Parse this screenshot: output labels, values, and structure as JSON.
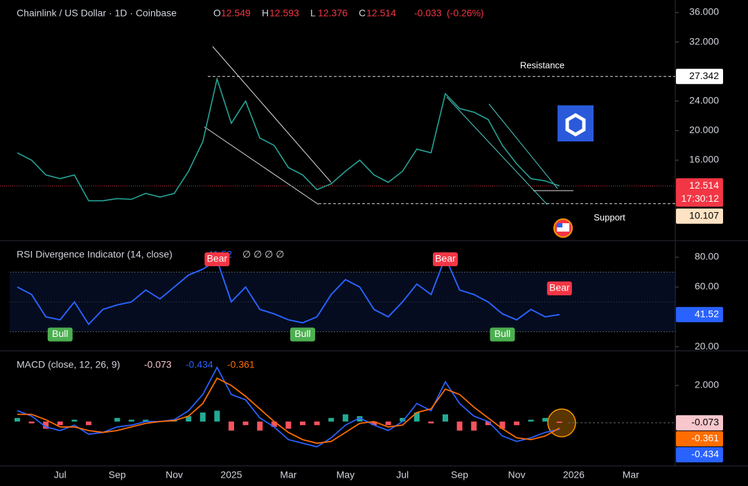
{
  "chart_data": {
    "type": "panes",
    "categories": [
      null,
      null,
      null,
      "Jul",
      null,
      null,
      null,
      "Sep",
      null,
      null,
      null,
      "Nov",
      null,
      null,
      null,
      "2025",
      null,
      null,
      null,
      "Mar",
      null,
      null,
      null,
      "May",
      null,
      null,
      null,
      "Jul",
      null,
      null,
      null,
      "Sep",
      null,
      null,
      null,
      "Nov",
      null,
      null,
      null,
      "2026",
      null,
      null,
      null,
      "Mar",
      null,
      null
    ],
    "panes": [
      {
        "type": "line",
        "title": "Chainlink / US Dollar · 1D · Coinbase",
        "ohlc": [
          {
            "label": "O",
            "value": 12.549
          },
          {
            "label": "H",
            "value": 12.593
          },
          {
            "label": "L",
            "value": 12.376
          },
          {
            "label": "C",
            "value": 12.514
          }
        ],
        "change": -0.033,
        "change_percent": {
          "value": -0.26,
          "label": "(-0.26%)"
        },
        "countdown": "17:30:12",
        "color": "#26a69a",
        "last_color": "#f23645",
        "values": [
          17,
          16,
          14,
          13.5,
          14,
          10.5,
          10.5,
          10.8,
          10.7,
          11.5,
          11,
          11.5,
          14.5,
          18.5,
          27,
          21,
          24,
          19,
          18,
          15,
          14,
          12,
          12.8,
          14.5,
          16,
          14,
          13,
          14.5,
          17.5,
          17,
          25,
          23,
          22.5,
          21.5,
          18,
          15.5,
          13.5,
          13.2,
          12.514,
          null,
          null,
          null,
          null,
          null,
          null,
          null
        ],
        "ylim": [
          5.3,
          37.69
        ],
        "yticks": [
          {
            "value": 16,
            "label": "16.000"
          },
          {
            "value": 20,
            "label": "20.000"
          },
          {
            "value": 24,
            "label": "24.000"
          },
          {
            "value": 32,
            "label": "32.000"
          },
          {
            "value": 36,
            "label": "36.000"
          }
        ],
        "annotations": [
          {
            "text": "Resistance",
            "value": 27.342
          },
          {
            "text": "Support",
            "value": 10.107
          }
        ]
      },
      {
        "type": "line",
        "title": "RSI Divergence Indicator (14, close)",
        "placeholders": "∅ ∅ ∅ ∅",
        "color": "#2962ff",
        "values": [
          60,
          55,
          40,
          38,
          50,
          35,
          45,
          48,
          50,
          58,
          52,
          60,
          68,
          72,
          78,
          50,
          60,
          45,
          42,
          38,
          36,
          40,
          55,
          65,
          60,
          45,
          40,
          50,
          62,
          55,
          80,
          58,
          55,
          50,
          42,
          38,
          45,
          40,
          41.52,
          null,
          null,
          null,
          null,
          null,
          null,
          null
        ],
        "signals": [
          null,
          null,
          null,
          "Bull",
          null,
          null,
          null,
          null,
          null,
          null,
          null,
          null,
          null,
          null,
          "Bear",
          null,
          null,
          null,
          null,
          null,
          "Bull",
          null,
          null,
          null,
          null,
          null,
          null,
          null,
          null,
          null,
          "Bear",
          null,
          null,
          null,
          "Bull",
          null,
          null,
          null,
          "Bear",
          null,
          null,
          null,
          null,
          null,
          null,
          null
        ],
        "signal_colors": {
          "Bull": "#4caf50",
          "Bear": "#f23645"
        },
        "band": [
          30,
          70
        ],
        "midline": 50,
        "ylim": [
          17.7,
          90.7
        ],
        "yticks": [
          {
            "value": 20,
            "label": "20.00"
          },
          {
            "value": 60,
            "label": "60.00"
          },
          {
            "value": 80,
            "label": "80.00"
          }
        ]
      },
      {
        "type": "macd",
        "title": "MACD (close, 12, 26, 9)",
        "series": [
          {
            "type": "bar",
            "color": "#f8c6cc",
            "colors": {
              "positive": "#22ab94",
              "negative": "#f7525f"
            },
            "values": [
              0.2,
              -0.1,
              -0.4,
              -0.2,
              0.1,
              -0.2,
              0,
              0.2,
              0.1,
              0.1,
              0,
              0.05,
              0.3,
              0.5,
              0.6,
              -0.5,
              -0.2,
              -0.5,
              -0.3,
              -0.4,
              -0.2,
              -0.2,
              0.2,
              0.4,
              0.3,
              -0.2,
              -0.2,
              0.2,
              0.5,
              -0.1,
              0.4,
              -0.5,
              -0.5,
              -0.2,
              -0.4,
              -0.2,
              0.1,
              0.2,
              -0.073,
              null,
              null,
              null,
              null,
              null,
              null,
              null
            ]
          },
          {
            "type": "line",
            "color": "#2962ff",
            "values": [
              0.6,
              0.3,
              -0.3,
              -0.5,
              -0.2,
              -0.7,
              -0.6,
              -0.3,
              -0.2,
              0,
              0,
              0.1,
              0.6,
              1.5,
              3,
              1.5,
              1.2,
              0.2,
              -0.3,
              -1,
              -1.2,
              -1.4,
              -0.9,
              -0.2,
              0.2,
              -0.2,
              -0.5,
              0,
              1,
              0.6,
              2.2,
              1,
              0.3,
              0,
              -0.8,
              -1.1,
              -0.9,
              -0.6,
              -0.434,
              null,
              null,
              null,
              null,
              null,
              null,
              null
            ]
          },
          {
            "type": "line",
            "color": "#ff6d00",
            "values": [
              0.4,
              0.4,
              0.1,
              -0.3,
              -0.3,
              -0.5,
              -0.6,
              -0.5,
              -0.3,
              -0.1,
              0,
              0.05,
              0.3,
              1,
              2.4,
              2,
              1.4,
              0.7,
              0,
              -0.6,
              -1,
              -1.2,
              -1.1,
              -0.6,
              -0.1,
              0,
              -0.3,
              -0.2,
              0.5,
              0.7,
              1.8,
              1.5,
              0.8,
              0.2,
              -0.4,
              -0.9,
              -1,
              -0.8,
              -0.361,
              null,
              null,
              null,
              null,
              null,
              null,
              null
            ]
          }
        ],
        "ylim": [
          -2.38,
          3.88
        ],
        "yticks": [
          {
            "value": 2,
            "label": "2.000"
          }
        ]
      }
    ]
  }
}
